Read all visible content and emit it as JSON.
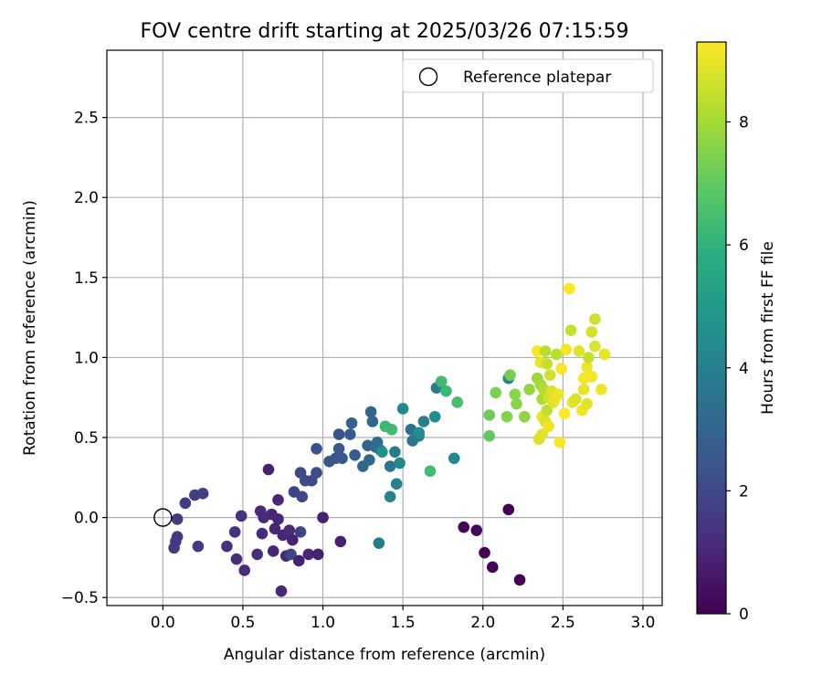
{
  "chart_data": {
    "type": "scatter",
    "title": "FOV centre drift starting at 2025/03/26 07:15:59",
    "xlabel": "Angular distance from reference (arcmin)",
    "ylabel": "Rotation from reference (arcmin)",
    "xlim": [
      -0.35,
      3.12
    ],
    "ylim": [
      -0.55,
      2.92
    ],
    "xticks": [
      "0.0",
      "0.5",
      "1.0",
      "1.5",
      "2.0",
      "2.5",
      "3.0"
    ],
    "yticks": [
      "-0.5",
      "0.0",
      "0.5",
      "1.0",
      "1.5",
      "2.0",
      "2.5"
    ],
    "grid": true,
    "legend": {
      "placement": "top-right",
      "entries": [
        {
          "label": "Reference platepar",
          "marker": "open-circle"
        }
      ]
    },
    "reference_point": {
      "x": 0.0,
      "y": 0.0
    },
    "colorbar": {
      "label": "Hours from first FF file",
      "min": 0,
      "max": 9.3,
      "ticks": [
        "0",
        "2",
        "4",
        "6",
        "8"
      ],
      "colormap": "viridis"
    },
    "points": [
      {
        "x": 0.09,
        "y": -0.12,
        "c": 1.5
      },
      {
        "x": 0.08,
        "y": -0.15,
        "c": 1.5
      },
      {
        "x": 0.07,
        "y": -0.19,
        "c": 1.6
      },
      {
        "x": 0.09,
        "y": -0.01,
        "c": 1.6
      },
      {
        "x": 0.14,
        "y": 0.09,
        "c": 1.7
      },
      {
        "x": 0.2,
        "y": 0.14,
        "c": 1.7
      },
      {
        "x": 0.25,
        "y": 0.15,
        "c": 1.7
      },
      {
        "x": 0.22,
        "y": -0.18,
        "c": 1.6
      },
      {
        "x": 0.4,
        "y": -0.18,
        "c": 1.3
      },
      {
        "x": 0.45,
        "y": -0.09,
        "c": 1.3
      },
      {
        "x": 0.46,
        "y": -0.26,
        "c": 1.2
      },
      {
        "x": 0.49,
        "y": 0.01,
        "c": 1.3
      },
      {
        "x": 0.51,
        "y": -0.33,
        "c": 1.2
      },
      {
        "x": 0.59,
        "y": -0.23,
        "c": 1.2
      },
      {
        "x": 0.61,
        "y": 0.04,
        "c": 1.1
      },
      {
        "x": 0.63,
        "y": 0.0,
        "c": 1.1
      },
      {
        "x": 0.62,
        "y": -0.1,
        "c": 1.1
      },
      {
        "x": 0.66,
        "y": 0.3,
        "c": 0.9
      },
      {
        "x": 0.68,
        "y": 0.02,
        "c": 1.0
      },
      {
        "x": 0.69,
        "y": -0.21,
        "c": 1.0
      },
      {
        "x": 0.7,
        "y": -0.07,
        "c": 1.0
      },
      {
        "x": 0.72,
        "y": 0.11,
        "c": 1.0
      },
      {
        "x": 0.72,
        "y": -0.01,
        "c": 1.0
      },
      {
        "x": 0.74,
        "y": -0.46,
        "c": 1.0
      },
      {
        "x": 0.75,
        "y": -0.11,
        "c": 1.0
      },
      {
        "x": 0.77,
        "y": -0.24,
        "c": 1.0
      },
      {
        "x": 0.79,
        "y": -0.08,
        "c": 1.1
      },
      {
        "x": 0.8,
        "y": -0.23,
        "c": 1.9
      },
      {
        "x": 0.81,
        "y": -0.14,
        "c": 0.9
      },
      {
        "x": 0.82,
        "y": 0.16,
        "c": 1.9
      },
      {
        "x": 0.85,
        "y": -0.27,
        "c": 0.9
      },
      {
        "x": 0.86,
        "y": 0.28,
        "c": 2.0
      },
      {
        "x": 0.86,
        "y": -0.09,
        "c": 1.9
      },
      {
        "x": 0.87,
        "y": 0.13,
        "c": 2.0
      },
      {
        "x": 0.89,
        "y": 0.23,
        "c": 2.1
      },
      {
        "x": 0.91,
        "y": -0.23,
        "c": 1.0
      },
      {
        "x": 0.93,
        "y": 0.23,
        "c": 2.1
      },
      {
        "x": 0.96,
        "y": 0.28,
        "c": 2.2
      },
      {
        "x": 0.96,
        "y": 0.43,
        "c": 2.3
      },
      {
        "x": 0.97,
        "y": -0.23,
        "c": 0.8
      },
      {
        "x": 1.0,
        "y": 0.0,
        "c": 0.8
      },
      {
        "x": 1.04,
        "y": 0.35,
        "c": 2.5
      },
      {
        "x": 1.08,
        "y": 0.37,
        "c": 2.5
      },
      {
        "x": 1.1,
        "y": 0.43,
        "c": 2.5
      },
      {
        "x": 1.1,
        "y": 0.52,
        "c": 2.4
      },
      {
        "x": 1.11,
        "y": -0.15,
        "c": 0.9
      },
      {
        "x": 1.12,
        "y": 0.37,
        "c": 2.6
      },
      {
        "x": 1.17,
        "y": 0.52,
        "c": 2.7
      },
      {
        "x": 1.18,
        "y": 0.59,
        "c": 2.8
      },
      {
        "x": 1.2,
        "y": 0.39,
        "c": 2.7
      },
      {
        "x": 1.25,
        "y": 0.32,
        "c": 3.0
      },
      {
        "x": 1.28,
        "y": 0.45,
        "c": 3.0
      },
      {
        "x": 1.29,
        "y": 0.36,
        "c": 3.1
      },
      {
        "x": 1.3,
        "y": 0.66,
        "c": 3.0
      },
      {
        "x": 1.31,
        "y": 0.6,
        "c": 3.1
      },
      {
        "x": 1.33,
        "y": 0.44,
        "c": 3.2
      },
      {
        "x": 1.34,
        "y": 0.47,
        "c": 3.3
      },
      {
        "x": 1.35,
        "y": -0.16,
        "c": 3.9
      },
      {
        "x": 1.36,
        "y": 0.42,
        "c": 3.4
      },
      {
        "x": 1.37,
        "y": 0.41,
        "c": 4.7
      },
      {
        "x": 1.39,
        "y": 0.57,
        "c": 6.2
      },
      {
        "x": 1.42,
        "y": 0.32,
        "c": 3.6
      },
      {
        "x": 1.42,
        "y": 0.13,
        "c": 4.1
      },
      {
        "x": 1.43,
        "y": 0.55,
        "c": 6.3
      },
      {
        "x": 1.45,
        "y": 0.41,
        "c": 3.8
      },
      {
        "x": 1.46,
        "y": 0.21,
        "c": 4.2
      },
      {
        "x": 1.48,
        "y": 0.34,
        "c": 4.3
      },
      {
        "x": 1.5,
        "y": 0.68,
        "c": 4.4
      },
      {
        "x": 1.55,
        "y": 0.55,
        "c": 3.5
      },
      {
        "x": 1.56,
        "y": 0.48,
        "c": 3.7
      },
      {
        "x": 1.6,
        "y": 0.51,
        "c": 3.9
      },
      {
        "x": 1.6,
        "y": 0.53,
        "c": 4.5
      },
      {
        "x": 1.63,
        "y": 0.6,
        "c": 4.0
      },
      {
        "x": 1.67,
        "y": 0.29,
        "c": 6.4
      },
      {
        "x": 1.7,
        "y": 0.63,
        "c": 4.5
      },
      {
        "x": 1.71,
        "y": 0.81,
        "c": 3.9
      },
      {
        "x": 1.74,
        "y": 0.85,
        "c": 6.3
      },
      {
        "x": 1.77,
        "y": 0.79,
        "c": 6.2
      },
      {
        "x": 1.82,
        "y": 0.37,
        "c": 4.3
      },
      {
        "x": 1.84,
        "y": 0.72,
        "c": 6.5
      },
      {
        "x": 1.88,
        "y": -0.06,
        "c": 0.2
      },
      {
        "x": 1.96,
        "y": -0.08,
        "c": 0.2
      },
      {
        "x": 2.01,
        "y": -0.22,
        "c": 0.1
      },
      {
        "x": 2.04,
        "y": 0.51,
        "c": 7.0
      },
      {
        "x": 2.04,
        "y": 0.64,
        "c": 7.2
      },
      {
        "x": 2.06,
        "y": -0.31,
        "c": 0.1
      },
      {
        "x": 2.08,
        "y": 0.78,
        "c": 7.4
      },
      {
        "x": 2.15,
        "y": 0.63,
        "c": 7.5
      },
      {
        "x": 2.16,
        "y": 0.87,
        "c": 4.2
      },
      {
        "x": 2.16,
        "y": 0.05,
        "c": 0.0
      },
      {
        "x": 2.17,
        "y": 0.89,
        "c": 7.3
      },
      {
        "x": 2.2,
        "y": 0.77,
        "c": 7.6
      },
      {
        "x": 2.21,
        "y": 0.71,
        "c": 7.6
      },
      {
        "x": 2.23,
        "y": -0.39,
        "c": 0.0
      },
      {
        "x": 2.26,
        "y": 0.63,
        "c": 7.7
      },
      {
        "x": 2.29,
        "y": 0.8,
        "c": 7.8
      },
      {
        "x": 2.34,
        "y": 0.87,
        "c": 7.9
      },
      {
        "x": 2.34,
        "y": 1.04,
        "c": 9.2
      },
      {
        "x": 2.35,
        "y": 0.49,
        "c": 8.8
      },
      {
        "x": 2.36,
        "y": 0.83,
        "c": 8.0
      },
      {
        "x": 2.36,
        "y": 0.97,
        "c": 9.0
      },
      {
        "x": 2.37,
        "y": 0.74,
        "c": 8.1
      },
      {
        "x": 2.37,
        "y": 0.52,
        "c": 8.9
      },
      {
        "x": 2.37,
        "y": 0.63,
        "c": 9.0
      },
      {
        "x": 2.38,
        "y": 0.8,
        "c": 8.2
      },
      {
        "x": 2.39,
        "y": 1.04,
        "c": 8.3
      },
      {
        "x": 2.39,
        "y": 0.6,
        "c": 8.8
      },
      {
        "x": 2.4,
        "y": 0.67,
        "c": 8.4
      },
      {
        "x": 2.4,
        "y": 0.96,
        "c": 8.5
      },
      {
        "x": 2.41,
        "y": 0.75,
        "c": 8.6
      },
      {
        "x": 2.41,
        "y": 0.57,
        "c": 9.1
      },
      {
        "x": 2.42,
        "y": 0.89,
        "c": 8.7
      },
      {
        "x": 2.43,
        "y": 0.79,
        "c": 8.8
      },
      {
        "x": 2.44,
        "y": 0.72,
        "c": 8.9
      },
      {
        "x": 2.45,
        "y": 0.74,
        "c": 9.0
      },
      {
        "x": 2.46,
        "y": 1.02,
        "c": 8.3
      },
      {
        "x": 2.47,
        "y": 0.77,
        "c": 9.1
      },
      {
        "x": 2.48,
        "y": 0.47,
        "c": 9.2
      },
      {
        "x": 2.49,
        "y": 0.93,
        "c": 9.2
      },
      {
        "x": 2.51,
        "y": 0.65,
        "c": 9.3
      },
      {
        "x": 2.52,
        "y": 1.05,
        "c": 9.2
      },
      {
        "x": 2.54,
        "y": 1.43,
        "c": 9.3
      },
      {
        "x": 2.55,
        "y": 1.17,
        "c": 8.5
      },
      {
        "x": 2.56,
        "y": 0.72,
        "c": 9.0
      },
      {
        "x": 2.58,
        "y": 0.74,
        "c": 8.8
      },
      {
        "x": 2.6,
        "y": 1.04,
        "c": 8.9
      },
      {
        "x": 2.62,
        "y": 0.67,
        "c": 9.1
      },
      {
        "x": 2.63,
        "y": 0.8,
        "c": 9.0
      },
      {
        "x": 2.63,
        "y": 0.87,
        "c": 9.2
      },
      {
        "x": 2.65,
        "y": 0.94,
        "c": 9.1
      },
      {
        "x": 2.65,
        "y": 0.71,
        "c": 8.9
      },
      {
        "x": 2.66,
        "y": 1.0,
        "c": 8.5
      },
      {
        "x": 2.68,
        "y": 0.88,
        "c": 9.2
      },
      {
        "x": 2.68,
        "y": 1.16,
        "c": 8.7
      },
      {
        "x": 2.7,
        "y": 1.24,
        "c": 8.6
      },
      {
        "x": 2.7,
        "y": 1.07,
        "c": 8.8
      },
      {
        "x": 2.74,
        "y": 0.8,
        "c": 9.1
      },
      {
        "x": 2.76,
        "y": 1.02,
        "c": 9.0
      }
    ]
  }
}
